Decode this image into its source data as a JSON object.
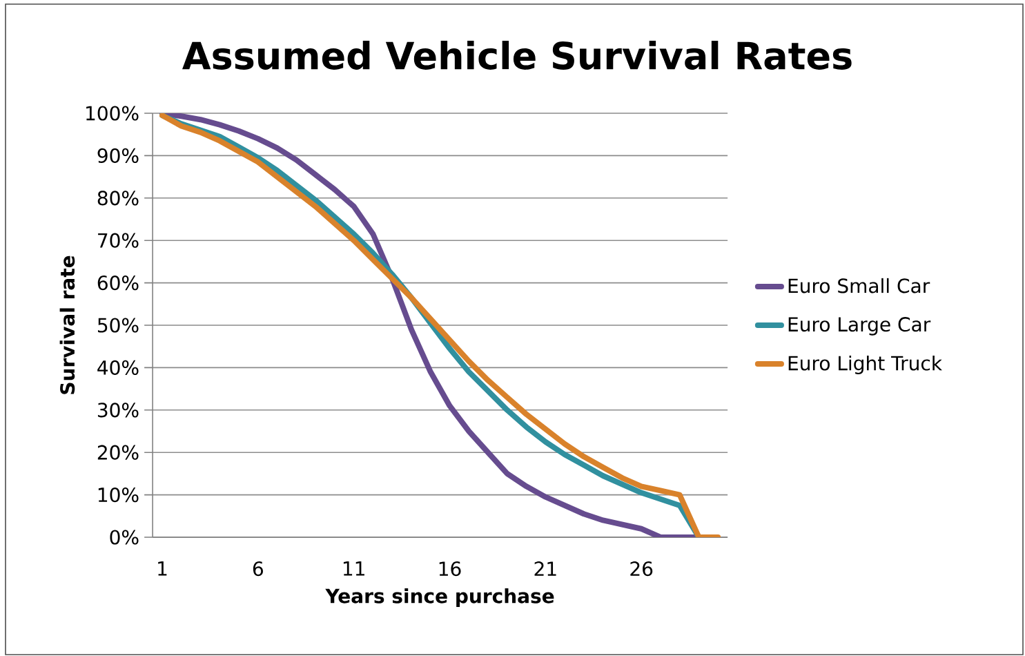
{
  "chart_data": {
    "type": "line",
    "title": "Assumed Vehicle Survival Rates",
    "xlabel": "Years since  purchase",
    "ylabel": "Survival rate",
    "categories": [
      "1",
      null,
      null,
      null,
      null,
      "6",
      null,
      null,
      null,
      null,
      "11",
      null,
      null,
      null,
      null,
      "16",
      null,
      null,
      null,
      null,
      "21",
      null,
      null,
      null,
      null,
      "26",
      null,
      null,
      null,
      null
    ],
    "series": [
      {
        "name": "Euro Small  Car",
        "color": "#664c8f",
        "values": [
          100,
          99.3,
          98.5,
          97.3,
          95.8,
          94,
          91.8,
          89,
          85.5,
          82,
          78,
          71.5,
          61,
          49,
          39,
          31,
          25,
          20,
          15,
          12,
          9.5,
          7.5,
          5.5,
          4,
          3,
          2,
          0,
          0,
          0,
          null
        ]
      },
      {
        "name": "Euro Large Car",
        "color": "#31909f",
        "values": [
          99.5,
          97.5,
          96,
          94.5,
          92,
          89.5,
          86.5,
          83,
          79.5,
          75.5,
          71.5,
          67,
          62,
          56.5,
          50.5,
          44.5,
          39,
          34.5,
          30,
          26,
          22.5,
          19.5,
          17,
          14.5,
          12.5,
          10.5,
          9,
          7.5,
          0,
          null
        ]
      },
      {
        "name": "Euro Light Truck",
        "color": "#d9822b",
        "values": [
          99.5,
          97,
          95.5,
          93.5,
          91,
          88.5,
          85,
          81.5,
          78,
          74,
          70,
          65.5,
          61,
          56.5,
          51.5,
          46.5,
          41.5,
          37,
          33,
          29,
          25.5,
          22,
          19,
          16.5,
          14,
          12,
          11,
          10,
          0,
          0
        ]
      }
    ],
    "ylim": [
      0,
      100
    ],
    "yticks": [
      {
        "value": 0,
        "label": "0%"
      },
      {
        "value": 10,
        "label": "10%"
      },
      {
        "value": 20,
        "label": "20%"
      },
      {
        "value": 30,
        "label": "30%"
      },
      {
        "value": 40,
        "label": "40%"
      },
      {
        "value": 50,
        "label": "50%"
      },
      {
        "value": 60,
        "label": "60%"
      },
      {
        "value": 70,
        "label": "70%"
      },
      {
        "value": 80,
        "label": "80%"
      },
      {
        "value": 90,
        "label": "90%"
      },
      {
        "value": 100,
        "label": "100%"
      }
    ],
    "grid": "y",
    "legend": "right",
    "marker": "none",
    "line_style": "solid"
  }
}
